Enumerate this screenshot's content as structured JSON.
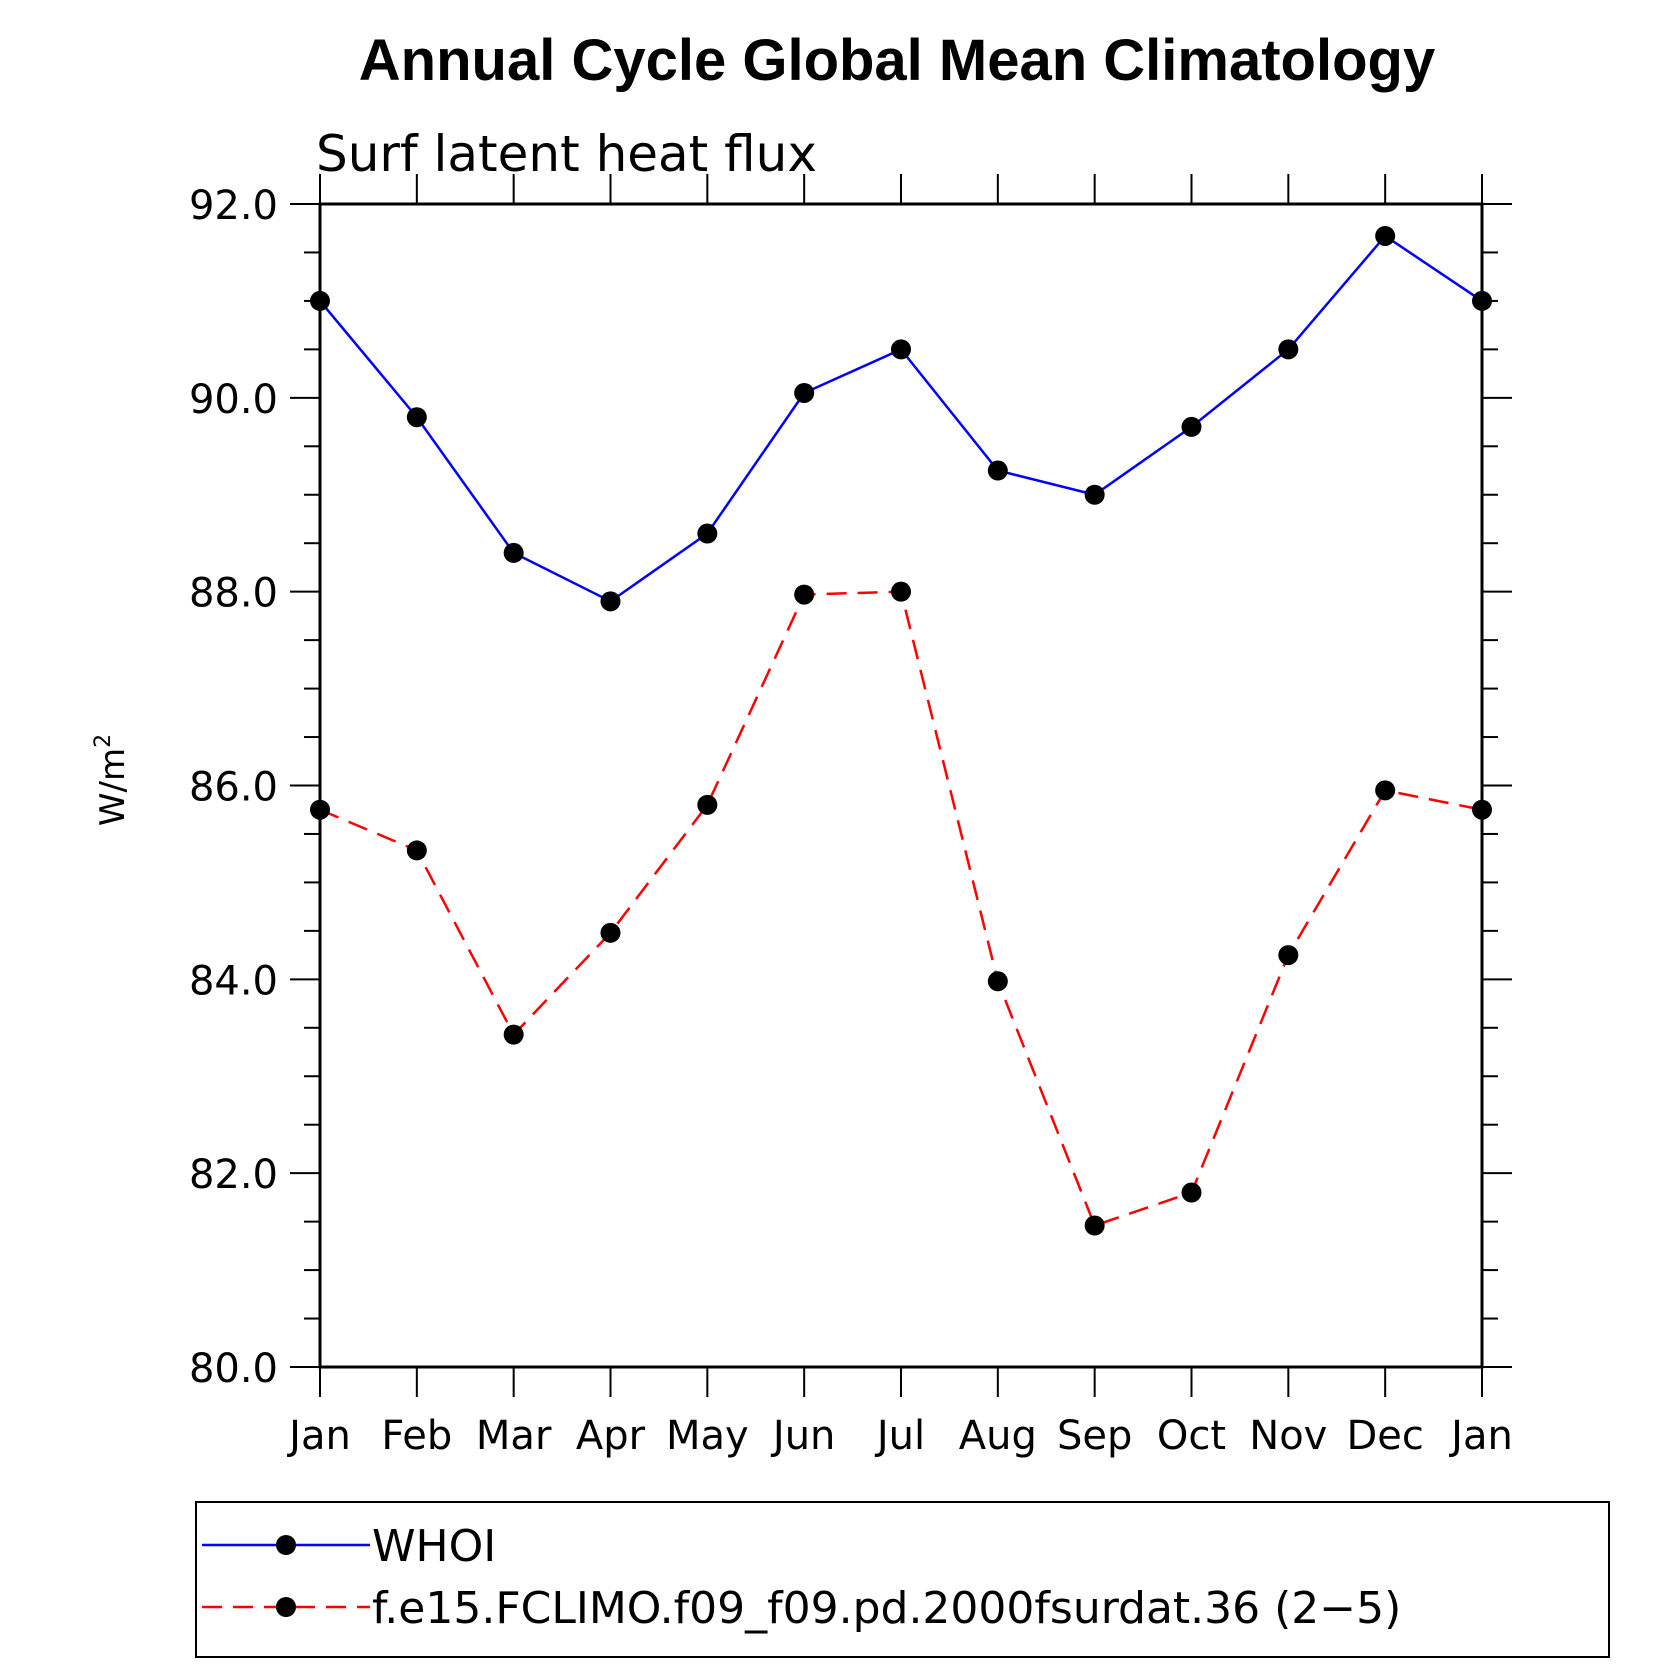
{
  "chart_data": {
    "type": "line",
    "title": "Annual Cycle Global Mean Climatology",
    "subtitle": "Surf latent heat flux",
    "ylabel": "W/m",
    "ylabel_sup": "2",
    "xlabel": "",
    "categories": [
      "Jan",
      "Feb",
      "Mar",
      "Apr",
      "May",
      "Jun",
      "Jul",
      "Aug",
      "Sep",
      "Oct",
      "Nov",
      "Dec",
      "Jan"
    ],
    "ylim": [
      80,
      92
    ],
    "yticks": [
      "80.0",
      "82.0",
      "84.0",
      "86.0",
      "88.0",
      "90.0",
      "92.0"
    ],
    "legend_position": "bottom",
    "series": [
      {
        "name": "WHOI",
        "color": "#0000ff",
        "style": "solid",
        "values": [
          91.0,
          89.8,
          88.4,
          87.9,
          88.6,
          90.05,
          90.5,
          89.25,
          89.0,
          89.7,
          90.5,
          91.67,
          91.0
        ]
      },
      {
        "name": "f.e15.FCLIMO.f09_f09.pd.2000fsurdat.36 (2−5)",
        "color": "#ff0000",
        "style": "dashed",
        "values": [
          85.75,
          85.33,
          83.43,
          84.48,
          85.8,
          87.97,
          88.0,
          83.98,
          81.46,
          81.8,
          84.25,
          85.95,
          85.75
        ]
      }
    ]
  }
}
